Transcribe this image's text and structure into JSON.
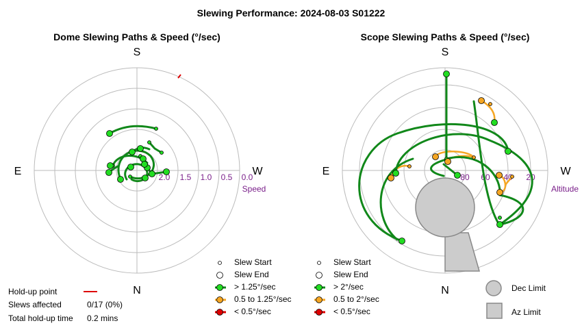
{
  "title": "Slewing Performance: 2024-08-03 S01222",
  "dome": {
    "title": "Dome Slewing Paths & Speed (°/sec)",
    "compass": {
      "top": "S",
      "bottom": "N",
      "left": "E",
      "right": "W"
    },
    "radial_ticks": [
      "2.0",
      "1.5",
      "1.0",
      "0.5",
      "0.0"
    ],
    "axis_name": "Speed"
  },
  "scope": {
    "title": "Scope Slewing Paths & Speed (°/sec)",
    "compass": {
      "top": "S",
      "bottom": "N",
      "left": "E",
      "right": "W"
    },
    "radial_ticks": [
      "80",
      "60",
      "40",
      "20"
    ],
    "axis_name": "Altitude"
  },
  "legend_dome": {
    "slew_start": "Slew Start",
    "slew_end": "Slew End",
    "fast": "> 1.25°/sec",
    "medium": "0.5 to 1.25°/sec",
    "slow": "< 0.5°/sec"
  },
  "legend_scope": {
    "slew_start": "Slew Start",
    "slew_end": "Slew End",
    "fast": "> 2°/sec",
    "medium": "0.5 to 2°/sec",
    "slow": "< 0.5°/sec"
  },
  "limits": {
    "dec": "Dec Limit",
    "az": "Az Limit"
  },
  "info": {
    "holdup_label": "Hold-up point",
    "slews_affected_label": "Slews affected",
    "slews_affected_value": "0/17 (0%)",
    "total_holdup_label": "Total hold-up time",
    "total_holdup_value": "0.2 mins"
  },
  "colors": {
    "fast": "#11881a",
    "fast_marker": "#22dd22",
    "medium": "#f5a623",
    "medium_marker": "#f5a623",
    "slow": "#dd0000",
    "grid": "#bbbbbb",
    "limit_fill": "#cccccc",
    "limit_stroke": "#888888",
    "tick_label": "#7a1f8a"
  },
  "chart_data": [
    {
      "type": "polar-path",
      "title": "Dome Slewing Paths & Speed (°/sec)",
      "radial_axis": "Speed (°/sec)",
      "radial_ticks": [
        2.0,
        1.5,
        1.0,
        0.5,
        0.0
      ],
      "holdup_points": 1,
      "slews": 17
    },
    {
      "type": "polar-path",
      "title": "Scope Slewing Paths & Speed (°/sec)",
      "radial_axis": "Altitude",
      "radial_ticks": [
        80,
        60,
        40,
        20
      ],
      "slews": 17
    }
  ]
}
